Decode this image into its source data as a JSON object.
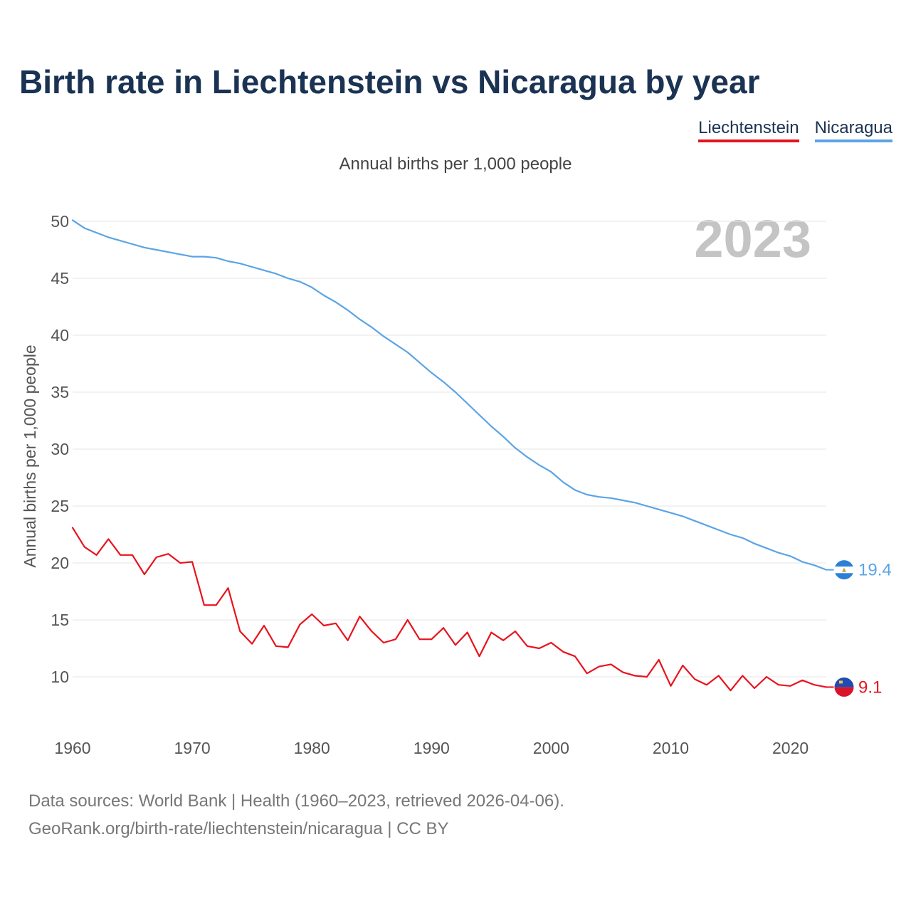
{
  "header": {
    "title": "Birth rate in Liechtenstein vs Nicaragua by year",
    "subtitle": "Annual births per 1,000 people"
  },
  "legend": [
    {
      "label": "Liechtenstein",
      "color": "#e8131d"
    },
    {
      "label": "Nicaragua",
      "color": "#5ba4e5"
    }
  ],
  "footer": {
    "line1": "Data sources: World Bank | Health (1960–2023, retrieved 2026-04-06).",
    "line2": "GeoRank.org/birth-rate/liechtenstein/nicaragua | CC BY"
  },
  "chart_data": {
    "type": "line",
    "title": "Birth rate in Liechtenstein vs Nicaragua by year",
    "ylabel": "Annual births per 1,000 people",
    "xlabel": "",
    "year_label": "2023",
    "xlim": [
      1960,
      2023
    ],
    "ylim": [
      6,
      51
    ],
    "xticks": [
      1960,
      1970,
      1980,
      1990,
      2000,
      2010,
      2020
    ],
    "yticks": [
      10,
      15,
      20,
      25,
      30,
      35,
      40,
      45,
      50
    ],
    "grid": true,
    "x": [
      1960,
      1961,
      1962,
      1963,
      1964,
      1965,
      1966,
      1967,
      1968,
      1969,
      1970,
      1971,
      1972,
      1973,
      1974,
      1975,
      1976,
      1977,
      1978,
      1979,
      1980,
      1981,
      1982,
      1983,
      1984,
      1985,
      1986,
      1987,
      1988,
      1989,
      1990,
      1991,
      1992,
      1993,
      1994,
      1995,
      1996,
      1997,
      1998,
      1999,
      2000,
      2001,
      2002,
      2003,
      2004,
      2005,
      2006,
      2007,
      2008,
      2009,
      2010,
      2011,
      2012,
      2013,
      2014,
      2015,
      2016,
      2017,
      2018,
      2019,
      2020,
      2021,
      2022,
      2023
    ],
    "series": [
      {
        "name": "Nicaragua",
        "color": "#5ba4e5",
        "end_label": "19.4",
        "values": [
          50.1,
          49.4,
          49.0,
          48.6,
          48.3,
          48.0,
          47.7,
          47.5,
          47.3,
          47.1,
          46.9,
          46.9,
          46.8,
          46.5,
          46.3,
          46.0,
          45.7,
          45.4,
          45.0,
          44.7,
          44.2,
          43.5,
          42.9,
          42.2,
          41.4,
          40.7,
          39.9,
          39.2,
          38.5,
          37.6,
          36.7,
          35.9,
          35.0,
          34.0,
          33.0,
          32.0,
          31.1,
          30.1,
          29.3,
          28.6,
          28.0,
          27.1,
          26.4,
          26.0,
          25.8,
          25.7,
          25.5,
          25.3,
          25.0,
          24.7,
          24.4,
          24.1,
          23.7,
          23.3,
          22.9,
          22.5,
          22.2,
          21.7,
          21.3,
          20.9,
          20.6,
          20.1,
          19.8,
          19.4
        ]
      },
      {
        "name": "Liechtenstein",
        "color": "#e8131d",
        "end_label": "9.1",
        "values": [
          23.1,
          21.4,
          20.7,
          22.1,
          20.7,
          20.7,
          19.0,
          20.5,
          20.8,
          20.0,
          20.1,
          16.3,
          16.3,
          17.8,
          14.0,
          12.9,
          14.5,
          12.7,
          12.6,
          14.6,
          15.5,
          14.5,
          14.7,
          13.2,
          15.3,
          14.0,
          13.0,
          13.3,
          15.0,
          13.3,
          13.3,
          14.3,
          12.8,
          13.9,
          11.8,
          13.9,
          13.2,
          14.0,
          12.7,
          12.5,
          13.0,
          12.2,
          11.8,
          10.3,
          10.9,
          11.1,
          10.4,
          10.1,
          10.0,
          11.5,
          9.2,
          11.0,
          9.8,
          9.3,
          10.1,
          8.8,
          10.1,
          9.0,
          10.0,
          9.3,
          9.2,
          9.7,
          9.3,
          9.1
        ]
      }
    ]
  }
}
